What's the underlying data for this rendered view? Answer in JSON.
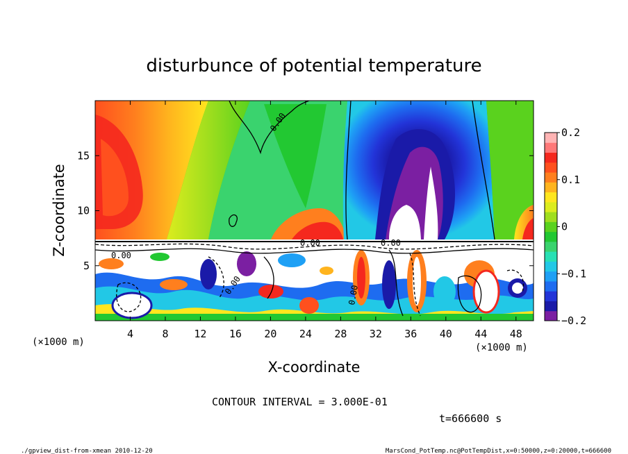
{
  "chart_data": {
    "type": "heatmap",
    "title": "disturbunce of potential temperature",
    "xlabel": "X-coordinate",
    "ylabel": "Z-coordinate",
    "x_unit_left": "(×1000 m)",
    "x_unit_right": "(×1000 m)",
    "xlim": [
      0,
      50
    ],
    "ylim": [
      0,
      20
    ],
    "x_ticks": [
      4,
      8,
      12,
      16,
      20,
      24,
      28,
      32,
      36,
      40,
      44,
      48
    ],
    "y_ticks": [
      5,
      10,
      15
    ],
    "colorbar": {
      "min": -0.2,
      "max": 0.2,
      "tick_values": [
        0.2,
        0.1,
        0,
        -0.1,
        -0.2
      ],
      "tick_labels": [
        "0.2",
        "0.1",
        "0",
        "−0.1",
        "−0.2"
      ],
      "colors": [
        "#7b1fa2",
        "#1a1aa8",
        "#2234d8",
        "#1e6cf0",
        "#1ea0f5",
        "#22c8e6",
        "#28e0b4",
        "#3ad36e",
        "#22c832",
        "#5ad21e",
        "#a0de1e",
        "#dcec1e",
        "#ffe61e",
        "#ffb41e",
        "#ff7f1e",
        "#ff501e",
        "#f5281e",
        "#ff7878",
        "#ffb4b4"
      ]
    },
    "contour_labels": [
      "0.00",
      "0.00",
      "0.00",
      "0.00",
      "0.00",
      "0.00"
    ],
    "contour_interval_text": "CONTOUR INTERVAL = 3.000E-01",
    "time_text": "t=666600 s",
    "footer_left": "./gpview_dist-from-xmean  2010-12-20",
    "footer_right": "MarsCond_PotTemp.nc@PotTempDist,x=0:50000,z=0:20000,t=666600"
  }
}
